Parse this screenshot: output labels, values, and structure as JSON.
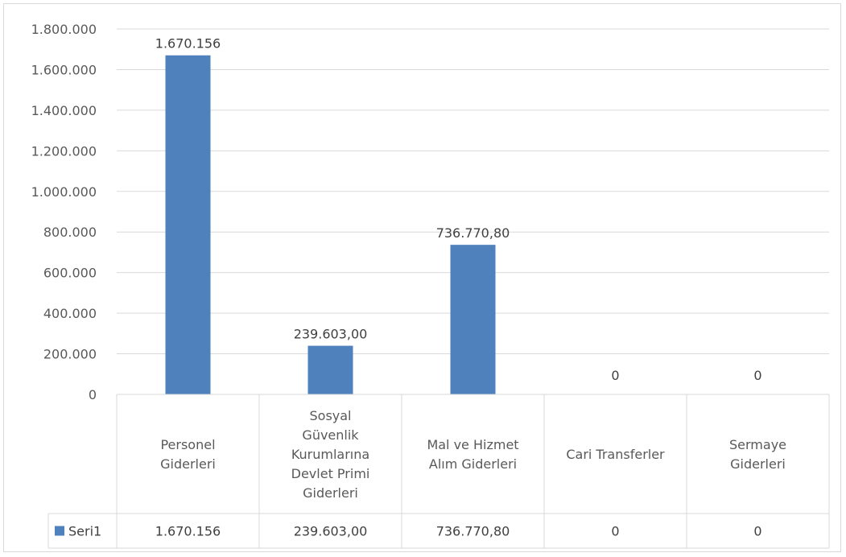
{
  "chart_data": {
    "type": "bar",
    "title": "",
    "xlabel": "",
    "ylabel": "",
    "ylim": [
      0,
      1800000
    ],
    "yticks": [
      "0",
      "200.000",
      "400.000",
      "600.000",
      "800.000",
      "1.000.000",
      "1.200.000",
      "1.400.000",
      "1.600.000",
      "1.800.000"
    ],
    "gridlines": true,
    "legend_position": "data-table",
    "categories": [
      [
        "Personel",
        "Giderleri"
      ],
      [
        "Sosyal",
        "Güvenlik",
        "Kurumlarına",
        "Devlet Primi",
        "Giderleri"
      ],
      [
        "Mal ve Hizmet",
        "Alım Giderleri"
      ],
      [
        "Cari Transferler"
      ],
      [
        "Sermaye",
        "Giderleri"
      ]
    ],
    "series": [
      {
        "name": "Seri1",
        "color": "#4f81bd",
        "values": [
          1670156,
          239603,
          736770.8,
          0,
          0
        ],
        "labels": [
          "1.670.156",
          "239.603,00",
          "736.770,80",
          "0",
          "0"
        ]
      }
    ]
  }
}
